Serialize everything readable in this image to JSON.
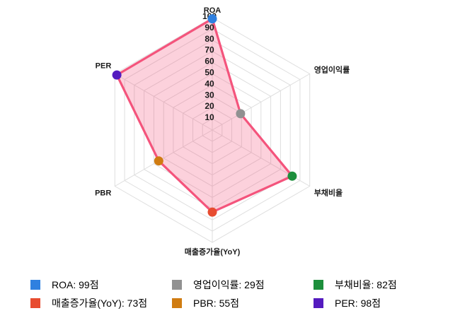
{
  "chart_data": {
    "type": "radar",
    "title": "",
    "axes": [
      {
        "label": "ROA",
        "value": 99,
        "color": "#2f80e0"
      },
      {
        "label": "영업이익률",
        "value": 29,
        "color": "#919191"
      },
      {
        "label": "부채비율",
        "value": 82,
        "color": "#1d8f3c"
      },
      {
        "label": "매출증가율(YoY)",
        "value": 73,
        "color": "#e74c30"
      },
      {
        "label": "PBR",
        "value": 55,
        "color": "#d07c11"
      },
      {
        "label": "PER",
        "value": 98,
        "color": "#541bbf"
      }
    ],
    "scale": {
      "min": 0,
      "max": 100,
      "step": 10,
      "ticks": [
        "10",
        "20",
        "30",
        "40",
        "50",
        "60",
        "70",
        "80",
        "90",
        "100"
      ]
    },
    "grid": {
      "rings": 10,
      "color": "#dedede",
      "shape": "hexagon"
    },
    "series_style": {
      "stroke": "#f4547c",
      "fill": "rgba(244,84,124,0.27)"
    },
    "legend_position": "bottom"
  },
  "legend": {
    "items": [
      {
        "label": "ROA: 99점",
        "color": "#2f80e0"
      },
      {
        "label": "영업이익률: 29점",
        "color": "#919191"
      },
      {
        "label": "부채비율: 82점",
        "color": "#1d8f3c"
      },
      {
        "label": "매출증가율(YoY): 73점",
        "color": "#e74c30"
      },
      {
        "label": "PBR: 55점",
        "color": "#d07c11"
      },
      {
        "label": "PER: 98점",
        "color": "#541bbf"
      }
    ]
  }
}
